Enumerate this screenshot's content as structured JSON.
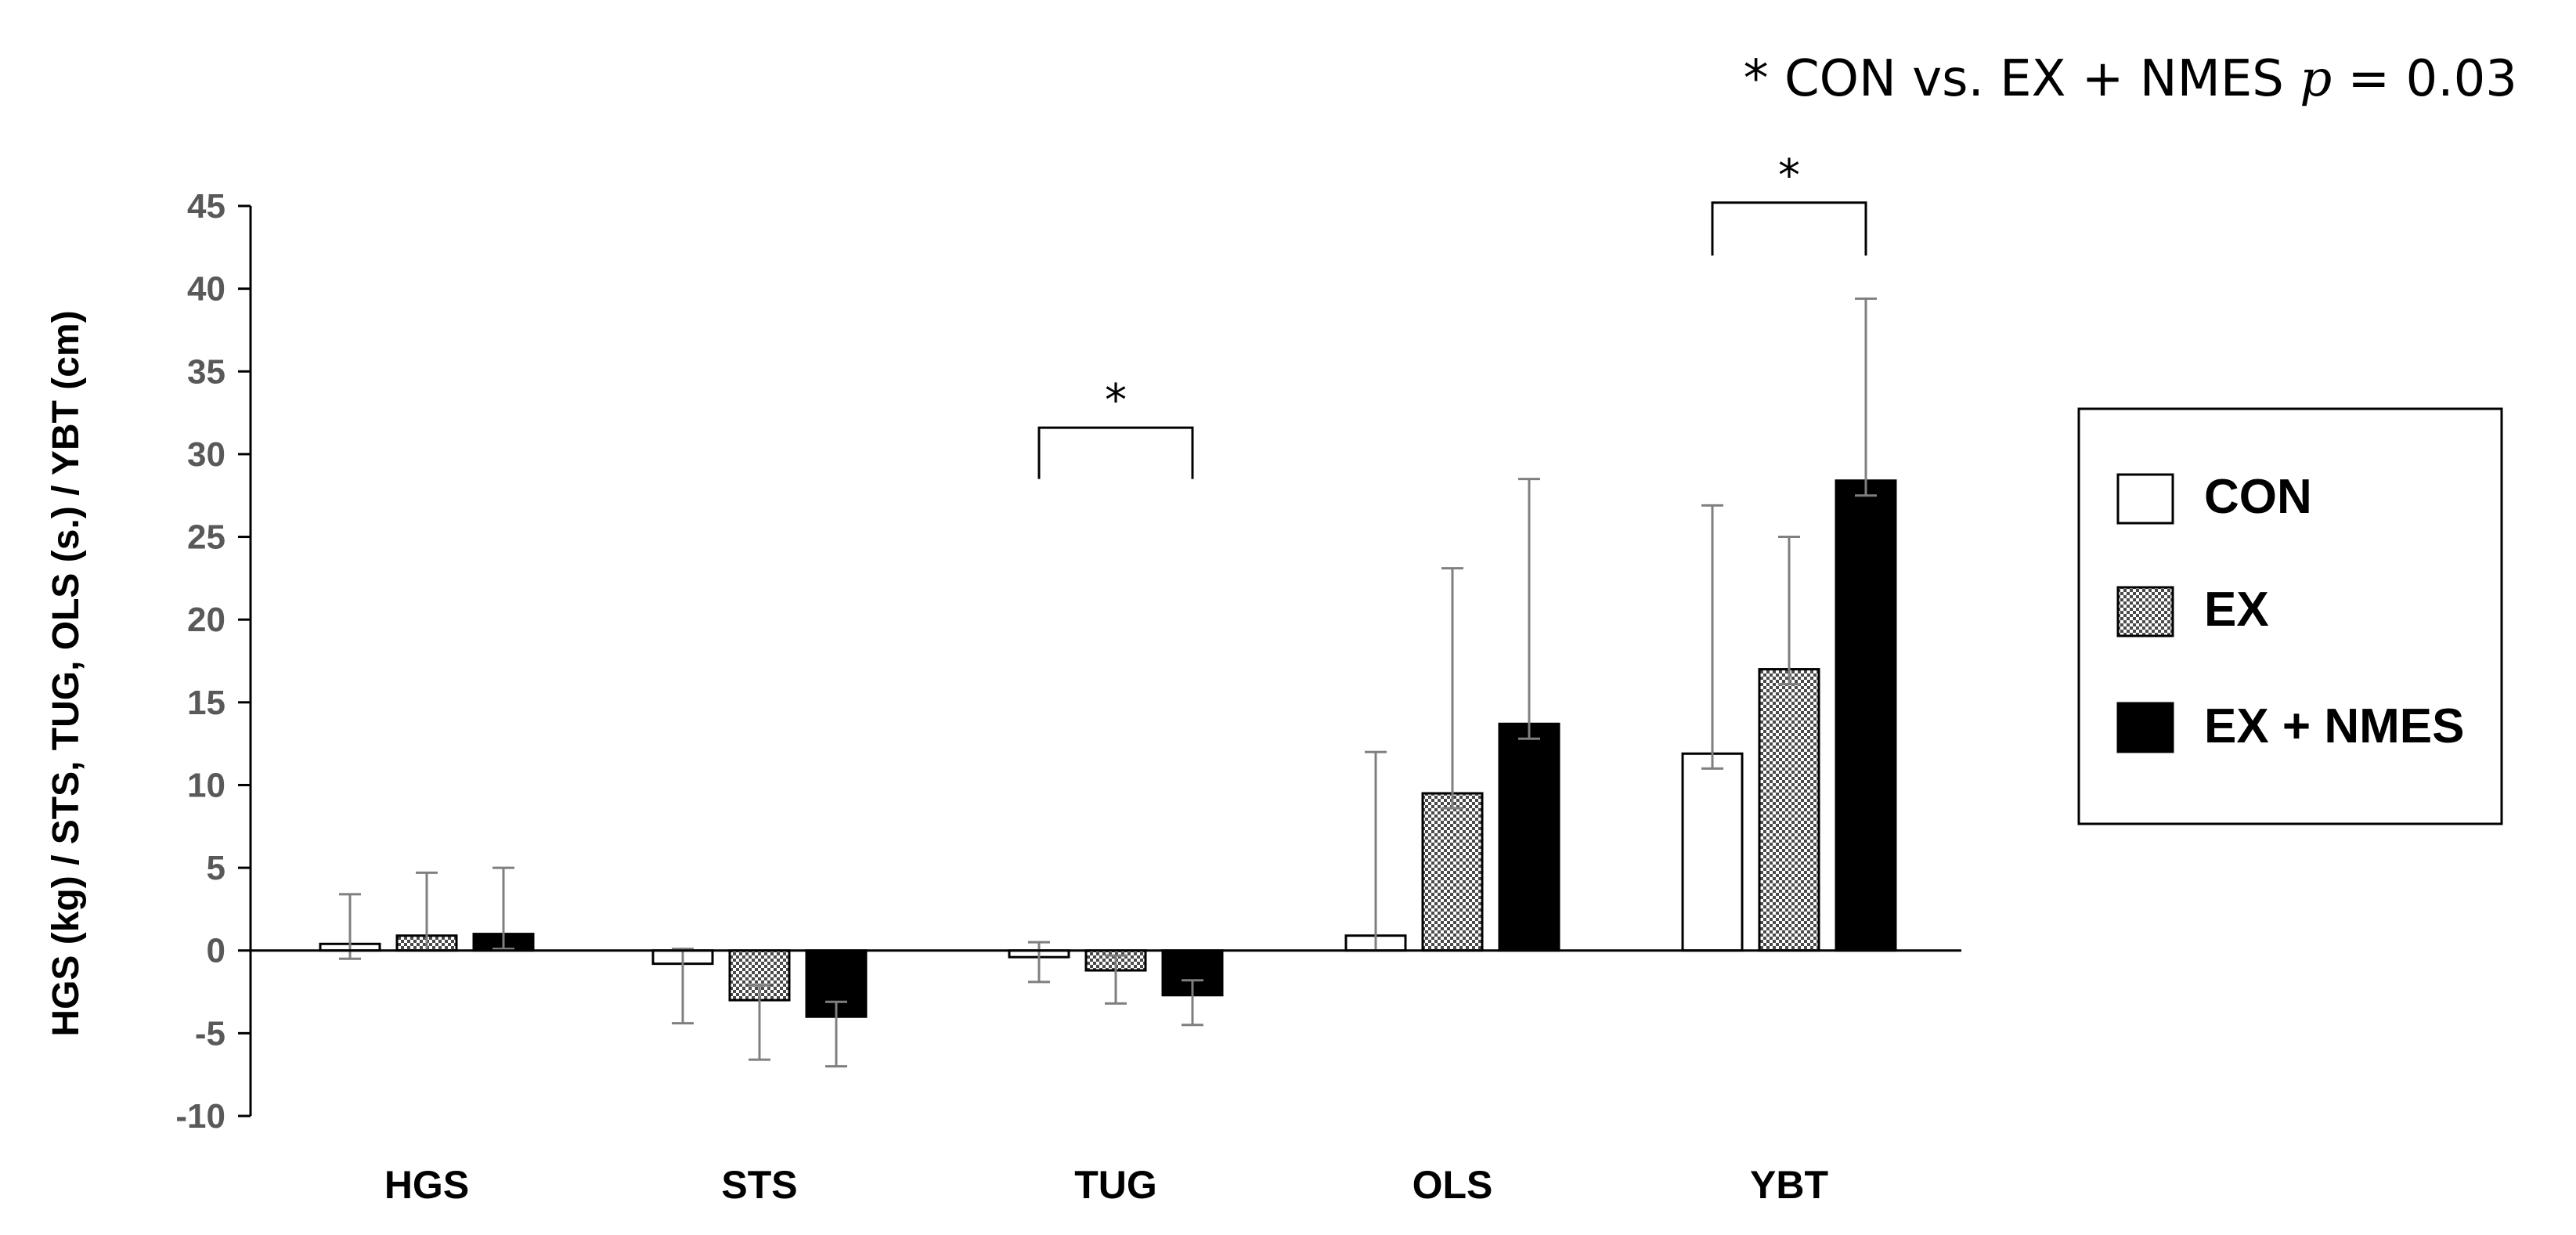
{
  "chart_data": {
    "type": "bar",
    "title": "",
    "annotation": {
      "prefix": "* CON vs. EX + NMES ",
      "p_symbol": "p",
      "suffix": " = 0.03"
    },
    "xlabel": "",
    "ylabel": "HGS (kg) / STS, TUG, OLS (s.) / YBT (cm)",
    "ylim": [
      -10,
      45
    ],
    "yticks": [
      45,
      40,
      35,
      30,
      25,
      20,
      15,
      10,
      5,
      0,
      -5,
      -10
    ],
    "categories": [
      "HGS",
      "STS",
      "TUG",
      "OLS",
      "YBT"
    ],
    "series": [
      {
        "name": "CON",
        "style": "white",
        "values": [
          0.4,
          -0.8,
          -0.4,
          0.9,
          11.9
        ],
        "error": [
          3.0,
          3.6,
          1.5,
          11.1,
          15.0
        ]
      },
      {
        "name": "EX",
        "style": "hatched",
        "values": [
          0.9,
          -3.0,
          -1.2,
          9.5,
          17.0
        ],
        "error": [
          3.8,
          3.6,
          2.0,
          13.6,
          8.0
        ]
      },
      {
        "name": "EX + NMES",
        "style": "black",
        "values": [
          1.0,
          -4.0,
          -2.7,
          13.7,
          28.4
        ],
        "error": [
          4.0,
          3.0,
          1.8,
          14.8,
          11.0
        ]
      }
    ],
    "significance": [
      {
        "category": "TUG",
        "from": "CON",
        "to": "EX + NMES",
        "label": "*",
        "bracket_y": 31.6,
        "bracket_drop": 3.1
      },
      {
        "category": "YBT",
        "from": "CON",
        "to": "EX + NMES",
        "label": "*",
        "bracket_y": 45.2,
        "bracket_drop": 3.2
      }
    ],
    "legend": {
      "position": "right",
      "items": [
        "CON",
        "EX",
        "EX + NMES"
      ]
    },
    "colors": {
      "axis": "#000000",
      "tick_text": "#595959",
      "bar_edge": "#000000",
      "hatch_fg": "#333333",
      "hatch_bg": "#ffffff",
      "black": "#000000",
      "error": "#7f7f7f"
    }
  }
}
